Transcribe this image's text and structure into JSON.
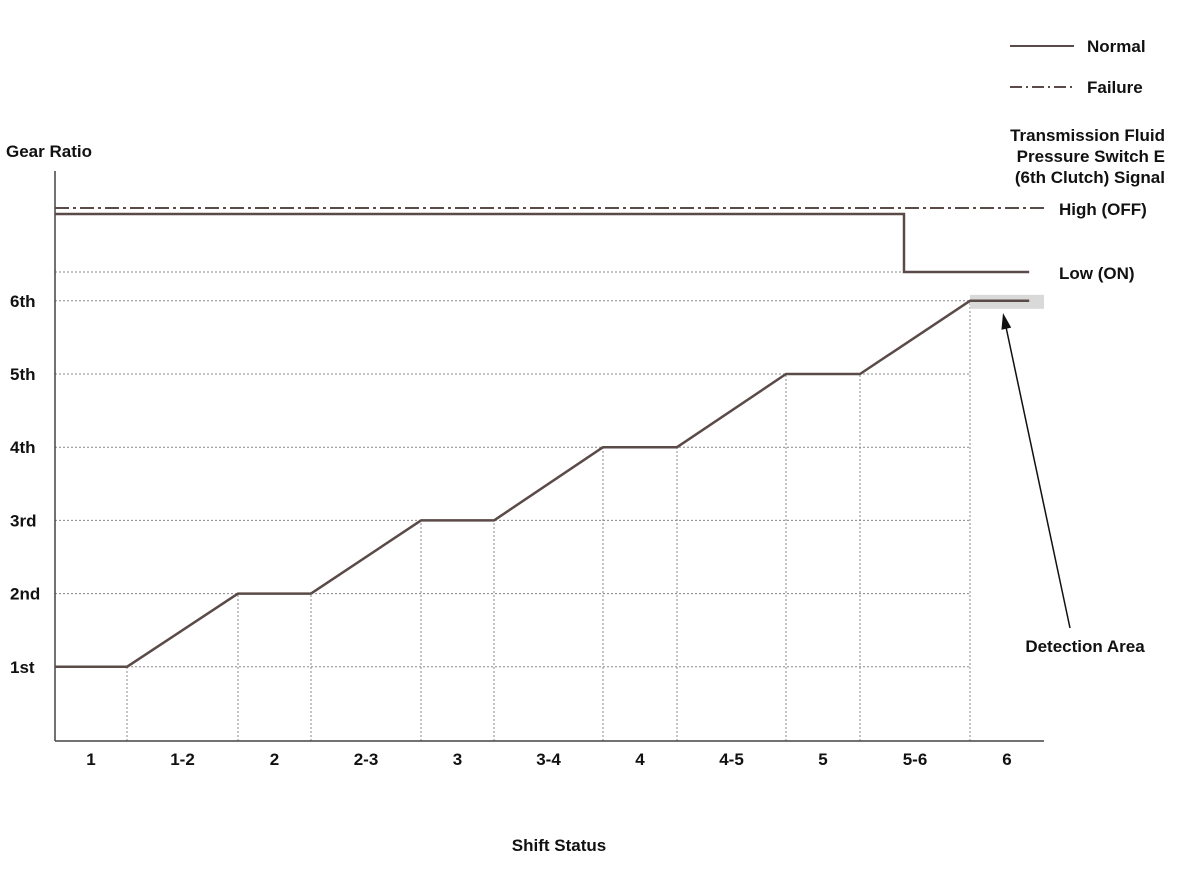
{
  "chart_data": {
    "type": "line",
    "ylabel": "Gear Ratio",
    "xlabel": "Shift Status",
    "categories": [
      "1",
      "1-2",
      "2",
      "2-3",
      "3",
      "3-4",
      "4",
      "4-5",
      "5",
      "5-6",
      "6"
    ],
    "gear_labels": [
      "1st",
      "2nd",
      "3rd",
      "4th",
      "5th",
      "6th"
    ],
    "series": [
      {
        "name": "Gear Ratio",
        "x": [
          0,
          1,
          2,
          3,
          4,
          5,
          6,
          7,
          8,
          9,
          10,
          10.8
        ],
        "y": [
          1,
          1,
          2,
          2,
          3,
          3,
          4,
          4,
          5,
          5,
          6,
          6
        ]
      }
    ],
    "signal": {
      "title_lines": [
        "Transmission Fluid",
        "Pressure Switch E",
        "(6th Clutch) Signal"
      ],
      "high_label": "High (OFF)",
      "low_label": "Low (ON)",
      "normal": {
        "x": [
          0,
          9.4,
          9.4,
          10.8
        ],
        "level": [
          "high",
          "high",
          "low",
          "low"
        ]
      },
      "failure": {
        "x": [
          0,
          10.8
        ],
        "level": [
          "high",
          "high"
        ]
      }
    },
    "legend": {
      "position": "top-right",
      "entries": [
        {
          "label": "Normal",
          "style": "solid"
        },
        {
          "label": "Failure",
          "style": "dash-dot"
        }
      ]
    },
    "annotations": [
      {
        "text": "Detection Area",
        "target_category": "6"
      }
    ],
    "colors": {
      "line": "#5a4a48",
      "grid": "#888888",
      "axis": "#444444",
      "highlight": "#d9d9d9",
      "text": "#111111"
    }
  }
}
